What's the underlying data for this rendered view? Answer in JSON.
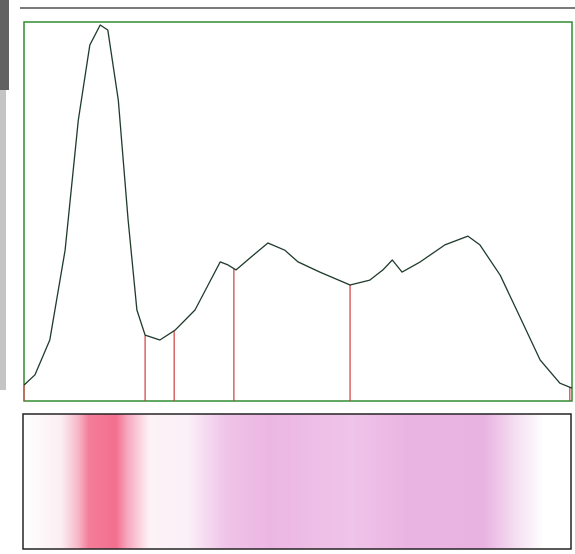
{
  "chart_data": {
    "type": "line",
    "x": [
      0,
      2.0,
      4.7,
      7.5,
      9.9,
      12.0,
      13.9,
      15.3,
      17.2,
      19.0,
      20.6,
      22.1,
      24.8,
      27.6,
      31.2,
      33.6,
      35.8,
      37.2,
      38.7,
      41.2,
      44.5,
      47.6,
      50.0,
      54.0,
      59.5,
      63.1,
      65.5,
      67.2,
      69.0,
      72.3,
      76.8,
      81.0,
      83.2,
      86.9,
      90.5,
      94.2,
      97.8,
      100
    ],
    "series": [
      {
        "color": "#1f3b2c",
        "values": [
          4.2,
          6.9,
          16.1,
          39.8,
          74.1,
          93.9,
          99.2,
          97.9,
          79.4,
          47.8,
          24.0,
          17.4,
          16.1,
          18.7,
          24.0,
          30.6,
          36.7,
          35.9,
          34.6,
          37.7,
          41.7,
          39.8,
          36.7,
          34.0,
          30.6,
          31.9,
          34.6,
          37.2,
          34.0,
          36.7,
          41.2,
          43.5,
          41.2,
          33.2,
          22.2,
          10.8,
          4.7,
          3.4
        ]
      }
    ],
    "dividers": [
      0,
      22.1,
      27.4,
      38.3,
      59.5,
      99.6
    ],
    "divider_color": "#d23c3c",
    "frame_color": "#2f8a2f",
    "xlim": [
      0,
      100
    ],
    "ylim": [
      0,
      100
    ]
  }
}
